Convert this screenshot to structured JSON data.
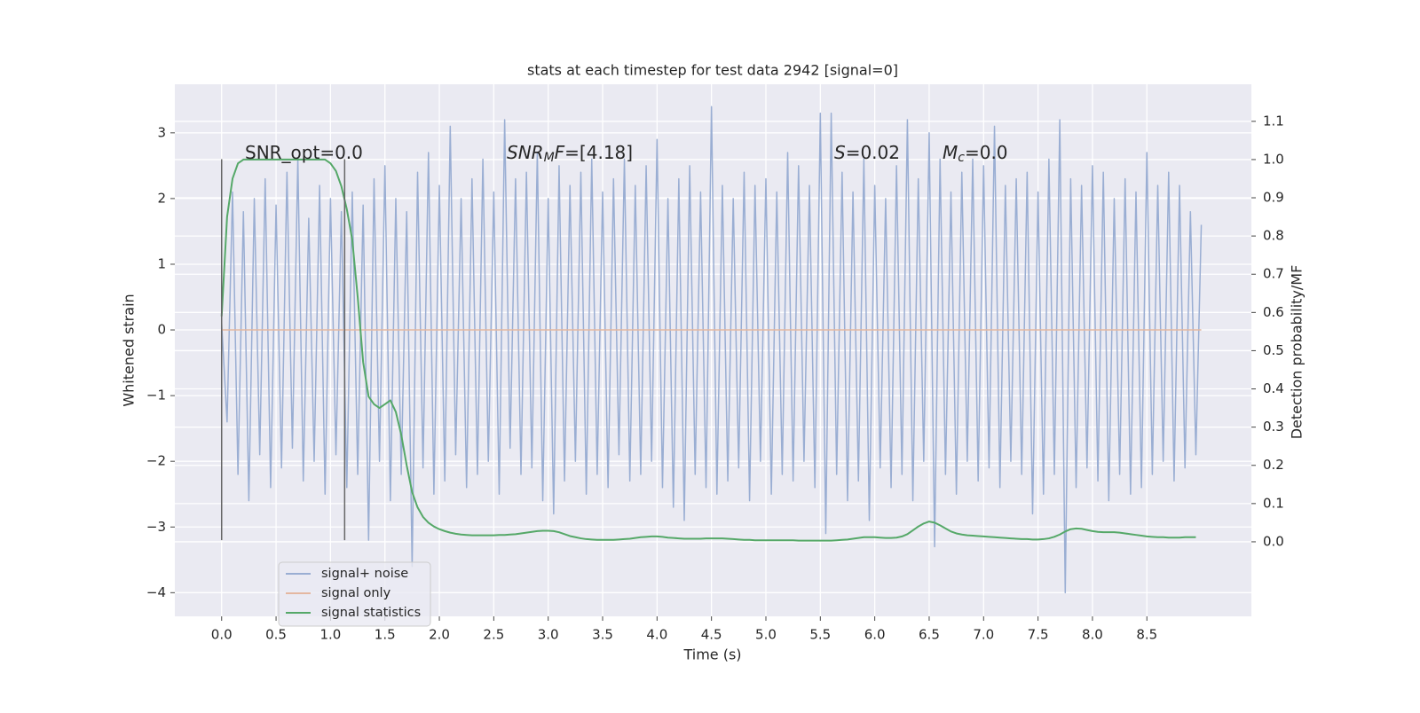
{
  "chart_data": {
    "type": "line",
    "title": "stats at each timestep for test data 2942 [signal=0]",
    "xlabel": "Time (s)",
    "ylabel": "Whitened strain",
    "y2label": "Detection probability/MF",
    "xlim": [
      -0.43,
      9.46
    ],
    "ylim": [
      -4.36,
      3.74
    ],
    "y2lim": [
      -0.195,
      1.197
    ],
    "xticks": [
      {
        "value": 0,
        "label": "0.0"
      },
      {
        "value": 0.5,
        "label": "0.5"
      },
      {
        "value": 1,
        "label": "1.0"
      },
      {
        "value": 1.5,
        "label": "1.5"
      },
      {
        "value": 2,
        "label": "2.0"
      },
      {
        "value": 2.5,
        "label": "2.5"
      },
      {
        "value": 3,
        "label": "3.0"
      },
      {
        "value": 3.5,
        "label": "3.5"
      },
      {
        "value": 4,
        "label": "4.0"
      },
      {
        "value": 4.5,
        "label": "4.5"
      },
      {
        "value": 5,
        "label": "5.0"
      },
      {
        "value": 5.5,
        "label": "5.5"
      },
      {
        "value": 6,
        "label": "6.0"
      },
      {
        "value": 6.5,
        "label": "6.5"
      },
      {
        "value": 7,
        "label": "7.0"
      },
      {
        "value": 7.5,
        "label": "7.5"
      },
      {
        "value": 8,
        "label": "8.0"
      },
      {
        "value": 8.5,
        "label": "8.5"
      }
    ],
    "yticks": [
      {
        "value": -4,
        "label": "−4"
      },
      {
        "value": -3,
        "label": "−3"
      },
      {
        "value": -2,
        "label": "−2"
      },
      {
        "value": -1,
        "label": "−1"
      },
      0,
      1,
      2,
      3
    ],
    "y2ticks": [
      {
        "value": 0,
        "label": "0.0"
      },
      {
        "value": 0.1,
        "label": "0.1"
      },
      {
        "value": 0.2,
        "label": "0.2"
      },
      {
        "value": 0.3,
        "label": "0.3"
      },
      {
        "value": 0.4,
        "label": "0.4"
      },
      {
        "value": 0.5,
        "label": "0.5"
      },
      {
        "value": 0.6,
        "label": "0.6"
      },
      {
        "value": 0.7,
        "label": "0.7"
      },
      {
        "value": 0.8,
        "label": "0.8"
      },
      {
        "value": 0.9,
        "label": "0.9"
      },
      {
        "value": 1,
        "label": "1.0"
      },
      {
        "value": 1.1,
        "label": "1.1"
      }
    ],
    "grid": true,
    "legend": "lower left",
    "x": [
      0,
      0.05,
      0.1,
      0.15,
      0.2,
      0.25,
      0.3,
      0.35,
      0.4,
      0.45,
      0.5,
      0.55,
      0.6,
      0.65,
      0.7,
      0.75,
      0.8,
      0.85,
      0.9,
      0.95,
      1,
      1.05,
      1.1,
      1.15,
      1.2,
      1.25,
      1.3,
      1.35,
      1.4,
      1.45,
      1.5,
      1.55,
      1.6,
      1.65,
      1.7,
      1.75,
      1.8,
      1.85,
      1.9,
      1.95,
      2,
      2.05,
      2.1,
      2.15,
      2.2,
      2.25,
      2.3,
      2.35,
      2.4,
      2.45,
      2.5,
      2.55,
      2.6,
      2.65,
      2.7,
      2.75,
      2.8,
      2.85,
      2.9,
      2.95,
      3,
      3.05,
      3.1,
      3.15,
      3.2,
      3.25,
      3.3,
      3.35,
      3.4,
      3.45,
      3.5,
      3.55,
      3.6,
      3.65,
      3.7,
      3.75,
      3.8,
      3.85,
      3.9,
      3.95,
      4,
      4.05,
      4.1,
      4.15,
      4.2,
      4.25,
      4.3,
      4.35,
      4.4,
      4.45,
      4.5,
      4.55,
      4.6,
      4.65,
      4.7,
      4.75,
      4.8,
      4.85,
      4.9,
      4.95,
      5,
      5.05,
      5.1,
      5.15,
      5.2,
      5.25,
      5.3,
      5.35,
      5.4,
      5.45,
      5.5,
      5.55,
      5.6,
      5.65,
      5.7,
      5.75,
      5.8,
      5.85,
      5.9,
      5.95,
      6,
      6.05,
      6.1,
      6.15,
      6.2,
      6.25,
      6.3,
      6.35,
      6.4,
      6.45,
      6.5,
      6.55,
      6.6,
      6.65,
      6.7,
      6.75,
      6.8,
      6.85,
      6.9,
      6.95,
      7,
      7.05,
      7.1,
      7.15,
      7.2,
      7.25,
      7.3,
      7.35,
      7.4,
      7.45,
      7.5,
      7.55,
      7.6,
      7.65,
      7.7,
      7.75,
      7.8,
      7.85,
      7.9,
      7.95,
      8,
      8.05,
      8.1,
      8.15,
      8.2,
      8.25,
      8.3,
      8.35,
      8.4,
      8.45,
      8.5,
      8.55,
      8.6,
      8.65,
      8.7,
      8.75,
      8.8,
      8.85,
      8.9,
      8.95,
      9
    ],
    "series": [
      {
        "name": "signal+ noise",
        "color": "#9aaed3",
        "values": [
          0.1,
          -1.4,
          2.1,
          -2.2,
          1.8,
          -2.6,
          2.0,
          -1.9,
          2.3,
          -2.4,
          1.9,
          -2.1,
          2.4,
          -1.8,
          2.6,
          -2.3,
          1.7,
          -2.0,
          2.2,
          -2.5,
          2.0,
          -1.9,
          1.8,
          -2.4,
          2.1,
          -2.2,
          1.9,
          -3.2,
          2.3,
          -2.0,
          2.5,
          -2.6,
          2.0,
          -2.2,
          1.8,
          -3.6,
          2.4,
          -2.1,
          2.7,
          -2.5,
          2.2,
          -2.3,
          3.1,
          -1.9,
          2.0,
          -2.4,
          2.3,
          -2.2,
          2.6,
          -2.0,
          2.1,
          -2.5,
          3.2,
          -1.8,
          2.3,
          -2.2,
          2.4,
          -2.1,
          2.7,
          -2.6,
          2.0,
          -2.8,
          2.5,
          -2.3,
          2.2,
          -2.0,
          2.4,
          -2.5,
          2.6,
          -2.2,
          2.1,
          -2.4,
          2.3,
          -1.9,
          2.6,
          -2.3,
          2.2,
          -2.2,
          2.5,
          -2.0,
          2.9,
          -2.4,
          2.0,
          -2.7,
          2.3,
          -2.9,
          2.5,
          -2.2,
          2.1,
          -2.4,
          3.4,
          -2.5,
          2.2,
          -2.3,
          2.0,
          -2.1,
          2.4,
          -2.6,
          2.2,
          -2.0,
          2.3,
          -2.5,
          2.1,
          -2.2,
          2.7,
          -2.3,
          2.5,
          -2.0,
          2.2,
          -2.4,
          3.3,
          -3.1,
          3.3,
          -2.2,
          2.4,
          -2.6,
          2.1,
          -2.3,
          2.6,
          -2.9,
          2.2,
          -2.1,
          2.0,
          -2.4,
          2.5,
          -2.2,
          3.2,
          -2.6,
          2.3,
          -2.0,
          3.0,
          -3.3,
          2.6,
          -2.2,
          2.1,
          -2.5,
          2.4,
          -2.0,
          2.6,
          -2.3,
          2.5,
          -2.1,
          3.1,
          -2.4,
          2.2,
          -2.0,
          2.3,
          -2.2,
          2.4,
          -2.8,
          2.1,
          -2.5,
          2.6,
          -2.2,
          3.2,
          -4.0,
          2.3,
          -2.4,
          2.2,
          -2.1,
          2.5,
          -2.3,
          2.4,
          -2.6,
          2.0,
          -2.2,
          2.3,
          -2.5,
          2.1,
          -2.4,
          2.7,
          -2.2,
          2.2,
          -2.0,
          2.4,
          -2.3,
          2.2,
          -2.1,
          1.8,
          -1.9,
          1.6
        ]
      },
      {
        "name": "signal only",
        "color": "#e4b7a0",
        "values": [
          0,
          0,
          0,
          0,
          0,
          0,
          0,
          0,
          0,
          0,
          0,
          0,
          0,
          0,
          0,
          0,
          0,
          0,
          0,
          0,
          0,
          0,
          0,
          0,
          0,
          0,
          0,
          0,
          0,
          0,
          0,
          0,
          0,
          0,
          0,
          0,
          0,
          0,
          0,
          0,
          0,
          0,
          0,
          0,
          0,
          0,
          0,
          0,
          0,
          0,
          0,
          0,
          0,
          0,
          0,
          0,
          0,
          0,
          0,
          0,
          0,
          0,
          0,
          0,
          0,
          0,
          0,
          0,
          0,
          0,
          0,
          0,
          0,
          0,
          0,
          0,
          0,
          0,
          0,
          0,
          0,
          0,
          0,
          0,
          0,
          0,
          0,
          0,
          0,
          0,
          0,
          0,
          0,
          0,
          0,
          0,
          0,
          0,
          0,
          0,
          0,
          0,
          0,
          0,
          0,
          0,
          0,
          0,
          0,
          0,
          0,
          0,
          0,
          0,
          0,
          0,
          0,
          0,
          0,
          0,
          0,
          0,
          0,
          0,
          0,
          0,
          0,
          0,
          0,
          0,
          0,
          0,
          0,
          0,
          0,
          0,
          0,
          0,
          0,
          0,
          0,
          0,
          0,
          0,
          0,
          0,
          0,
          0,
          0,
          0,
          0,
          0,
          0,
          0,
          0,
          0,
          0,
          0,
          0,
          0,
          0,
          0,
          0,
          0,
          0,
          0,
          0,
          0,
          0,
          0,
          0,
          0,
          0,
          0,
          0,
          0,
          0,
          0,
          0,
          0,
          0
        ]
      },
      {
        "name": "signal statistics",
        "color": "#55a868",
        "axis": "y2",
        "values": [
          0.59,
          0.85,
          0.95,
          0.99,
          1.0,
          1.0,
          1.0,
          1.0,
          1.0,
          1.0,
          1.0,
          1.0,
          1.0,
          1.0,
          1.0,
          1.0,
          1.0,
          1.0,
          1.0,
          1.0,
          0.99,
          0.97,
          0.93,
          0.87,
          0.79,
          0.64,
          0.47,
          0.38,
          0.36,
          0.35,
          0.36,
          0.37,
          0.34,
          0.28,
          0.2,
          0.13,
          0.09,
          0.065,
          0.05,
          0.04,
          0.033,
          0.028,
          0.024,
          0.021,
          0.019,
          0.018,
          0.017,
          0.017,
          0.017,
          0.017,
          0.017,
          0.018,
          0.018,
          0.019,
          0.02,
          0.022,
          0.024,
          0.026,
          0.028,
          0.029,
          0.029,
          0.028,
          0.025,
          0.02,
          0.015,
          0.012,
          0.009,
          0.007,
          0.006,
          0.005,
          0.005,
          0.005,
          0.005,
          0.006,
          0.007,
          0.008,
          0.01,
          0.012,
          0.013,
          0.014,
          0.014,
          0.013,
          0.011,
          0.01,
          0.009,
          0.008,
          0.008,
          0.008,
          0.008,
          0.009,
          0.009,
          0.009,
          0.009,
          0.008,
          0.007,
          0.006,
          0.005,
          0.005,
          0.004,
          0.004,
          0.004,
          0.004,
          0.004,
          0.004,
          0.004,
          0.004,
          0.003,
          0.003,
          0.003,
          0.003,
          0.003,
          0.003,
          0.003,
          0.004,
          0.005,
          0.006,
          0.008,
          0.01,
          0.012,
          0.012,
          0.012,
          0.011,
          0.01,
          0.01,
          0.011,
          0.014,
          0.02,
          0.03,
          0.04,
          0.048,
          0.053,
          0.05,
          0.043,
          0.035,
          0.027,
          0.022,
          0.019,
          0.017,
          0.016,
          0.015,
          0.014,
          0.013,
          0.012,
          0.011,
          0.01,
          0.009,
          0.008,
          0.007,
          0.007,
          0.006,
          0.006,
          0.007,
          0.009,
          0.013,
          0.019,
          0.027,
          0.033,
          0.035,
          0.034,
          0.031,
          0.028,
          0.026,
          0.025,
          0.025,
          0.025,
          0.024,
          0.022,
          0.02,
          0.018,
          0.016,
          0.014,
          0.013,
          0.012,
          0.012,
          0.011,
          0.011,
          0.011,
          0.012,
          0.012,
          0.012,
          null
        ]
      }
    ],
    "vlines": {
      "x": [
        0,
        1.13
      ],
      "ymin": -3.2,
      "ymax": 2.6,
      "color": "#666666"
    },
    "annotations": [
      {
        "parts": [
          "SNR_opt=0.0"
        ],
        "italic": [
          false
        ],
        "sub": [
          false
        ]
      },
      {
        "parts": [
          "SNR",
          "M",
          "F",
          "=[4.18]"
        ],
        "italic": [
          true,
          true,
          true,
          false
        ],
        "sub": [
          false,
          true,
          false,
          false
        ]
      },
      {
        "parts": [
          "S",
          "=0.02"
        ],
        "italic": [
          true,
          false
        ],
        "sub": [
          false,
          false
        ]
      },
      {
        "parts": [
          "M",
          "c",
          "=0.0"
        ],
        "italic": [
          true,
          true,
          false
        ],
        "sub": [
          false,
          true,
          false
        ]
      }
    ]
  }
}
